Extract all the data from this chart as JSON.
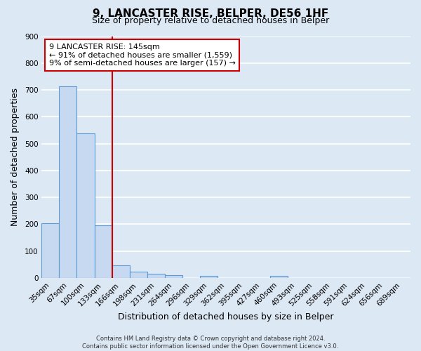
{
  "title": "9, LANCASTER RISE, BELPER, DE56 1HF",
  "subtitle": "Size of property relative to detached houses in Belper",
  "xlabel": "Distribution of detached houses by size in Belper",
  "ylabel": "Number of detached properties",
  "bin_labels": [
    "35sqm",
    "67sqm",
    "100sqm",
    "133sqm",
    "166sqm",
    "198sqm",
    "231sqm",
    "264sqm",
    "296sqm",
    "329sqm",
    "362sqm",
    "395sqm",
    "427sqm",
    "460sqm",
    "493sqm",
    "525sqm",
    "558sqm",
    "591sqm",
    "624sqm",
    "656sqm",
    "689sqm"
  ],
  "bar_values": [
    203,
    714,
    537,
    195,
    46,
    22,
    14,
    10,
    0,
    8,
    0,
    0,
    0,
    7,
    0,
    0,
    0,
    0,
    0,
    0,
    0
  ],
  "bar_color": "#c6d9f0",
  "bar_edge_color": "#5b9bd5",
  "annotation_box_text": "9 LANCASTER RISE: 145sqm\n← 91% of detached houses are smaller (1,559)\n9% of semi-detached houses are larger (157) →",
  "vline_color": "#cc0000",
  "ylim": [
    0,
    900
  ],
  "yticks": [
    0,
    100,
    200,
    300,
    400,
    500,
    600,
    700,
    800,
    900
  ],
  "footer_text": "Contains HM Land Registry data © Crown copyright and database right 2024.\nContains public sector information licensed under the Open Government Licence v3.0.",
  "background_color": "#dde8f5",
  "grid_color": "#ffffff",
  "title_fontsize": 11,
  "subtitle_fontsize": 9,
  "axis_label_fontsize": 9,
  "tick_fontsize": 7.5,
  "annotation_fontsize": 8,
  "footer_fontsize": 6
}
